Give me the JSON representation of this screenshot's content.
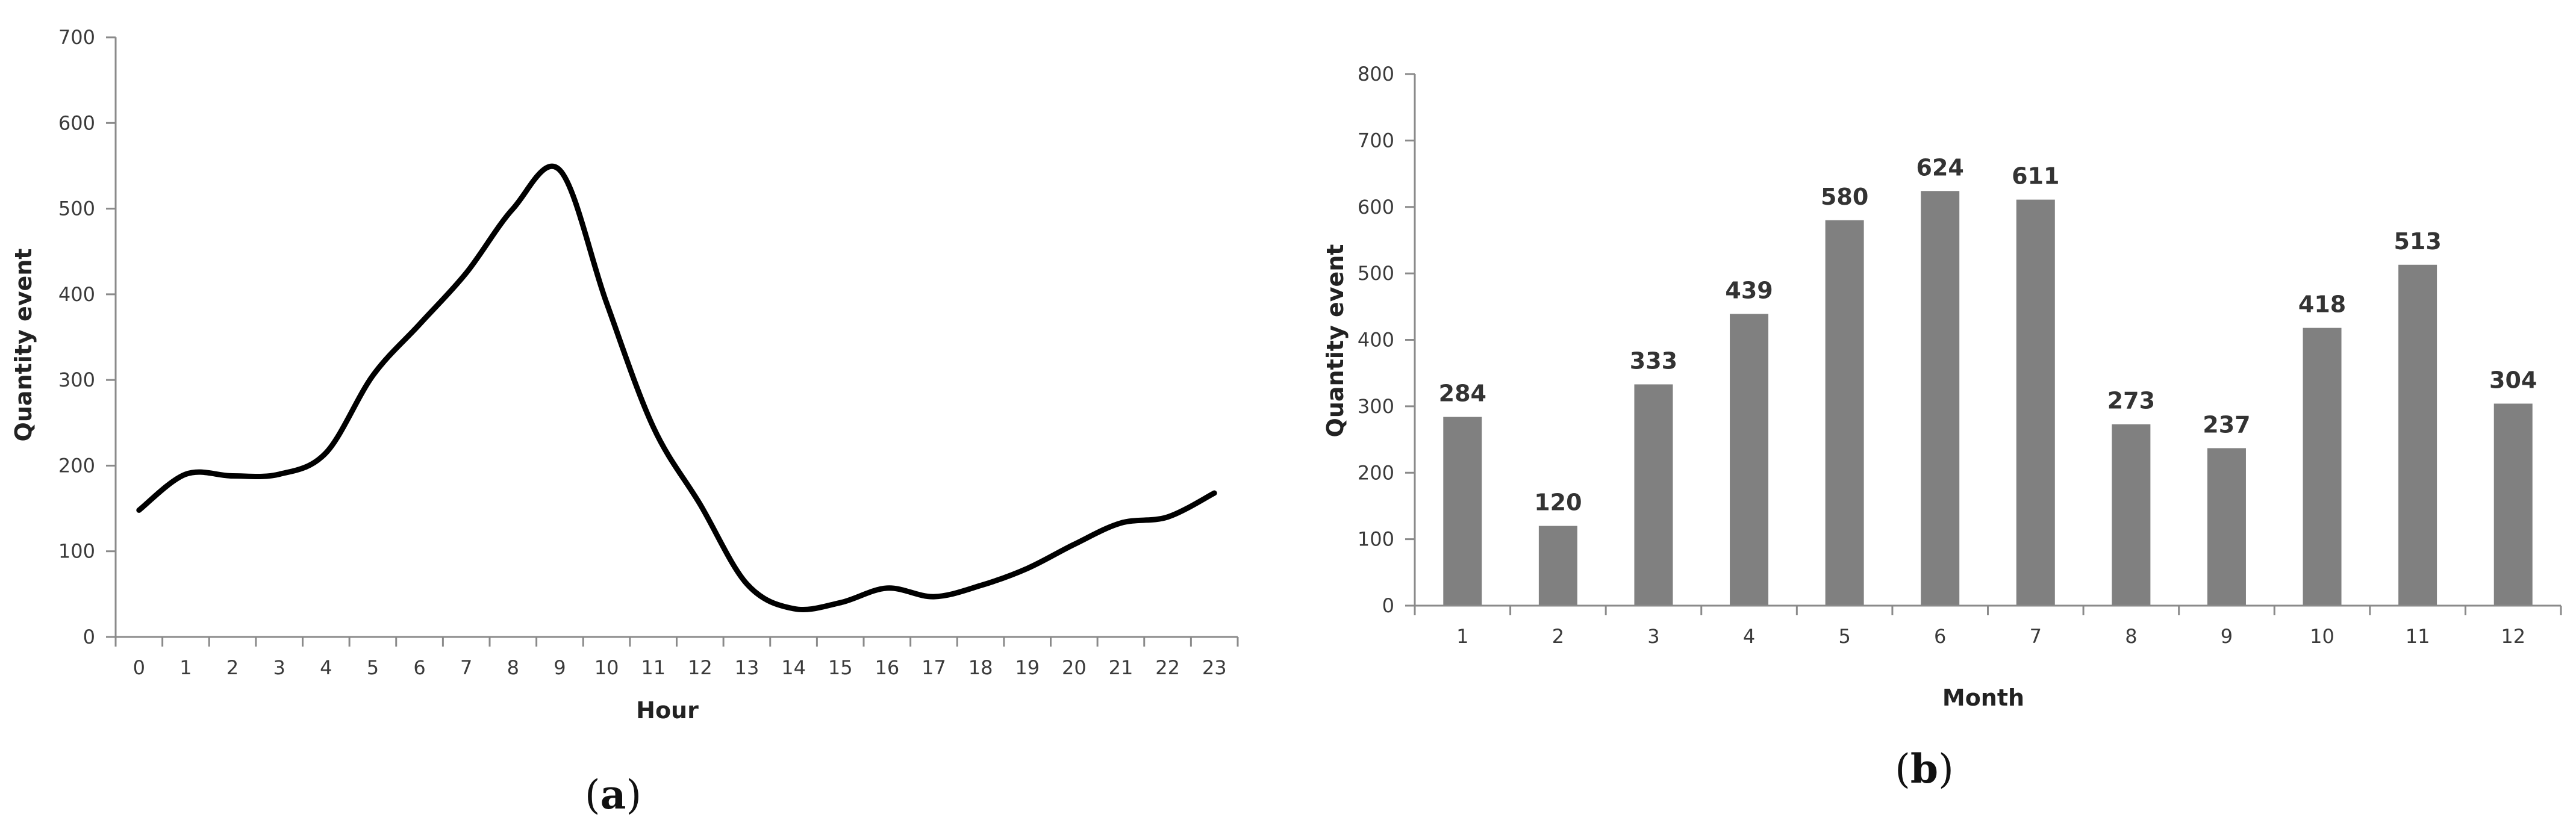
{
  "colors": {
    "line": "#000000",
    "bar": "#808080",
    "axis": "#8a8a8a"
  },
  "chart_data": [
    {
      "type": "line",
      "panel_label": {
        "open": "(",
        "letter": "a",
        "close": ")"
      },
      "title": "",
      "xlabel": "Hour",
      "ylabel": "Quantity event",
      "x": [
        "0",
        "1",
        "2",
        "3",
        "4",
        "5",
        "6",
        "7",
        "8",
        "9",
        "10",
        "11",
        "12",
        "13",
        "14",
        "15",
        "16",
        "17",
        "18",
        "19",
        "20",
        "21",
        "22",
        "23"
      ],
      "y": [
        148,
        190,
        188,
        190,
        215,
        305,
        365,
        425,
        500,
        545,
        390,
        245,
        155,
        62,
        33,
        40,
        57,
        47,
        60,
        80,
        108,
        133,
        140,
        168
      ],
      "ylim": [
        0,
        700
      ],
      "yticks": [
        0,
        100,
        200,
        300,
        400,
        500,
        600,
        700
      ],
      "grid": false,
      "legend": "none"
    },
    {
      "type": "bar",
      "panel_label": {
        "open": "(",
        "letter": "b",
        "close": ")"
      },
      "title": "",
      "xlabel": "Month",
      "ylabel": "Quantity event",
      "categories": [
        "1",
        "2",
        "3",
        "4",
        "5",
        "6",
        "7",
        "8",
        "9",
        "10",
        "11",
        "12"
      ],
      "values": [
        284,
        120,
        333,
        439,
        580,
        624,
        611,
        273,
        237,
        418,
        513,
        304
      ],
      "data_labels": [
        "284",
        "120",
        "333",
        "439",
        "580",
        "624",
        "611",
        "273",
        "237",
        "418",
        "513",
        "304"
      ],
      "ylim": [
        0,
        800
      ],
      "yticks": [
        0,
        100,
        200,
        300,
        400,
        500,
        600,
        700,
        800
      ],
      "grid": false,
      "legend": "none"
    }
  ]
}
